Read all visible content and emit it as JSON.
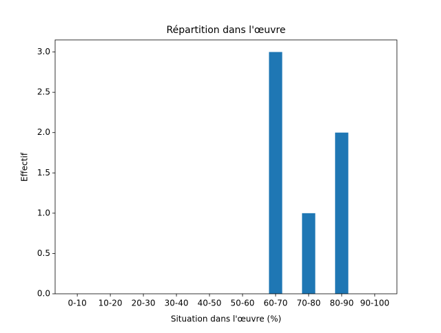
{
  "chart_data": {
    "type": "bar",
    "title": "Répartition dans l'œuvre",
    "x_label": "Situation dans l'œuvre (%)",
    "y_label": "Effectif",
    "categories": [
      "0-10",
      "10-20",
      "20-30",
      "30-40",
      "40-50",
      "50-60",
      "60-70",
      "70-80",
      "80-90",
      "90-100"
    ],
    "values": [
      0,
      0,
      0,
      0,
      0,
      0,
      3,
      1,
      2,
      0
    ],
    "color": "#1f77b4",
    "ylim": [
      0,
      3.15
    ],
    "yticks": [
      {
        "value": 0,
        "label": "0.0"
      },
      {
        "value": 0.5,
        "label": "0.5"
      },
      {
        "value": 1,
        "label": "1.0"
      },
      {
        "value": 1.5,
        "label": "1.5"
      },
      {
        "value": 2,
        "label": "2.0"
      },
      {
        "value": 2.5,
        "label": "2.5"
      },
      {
        "value": 3,
        "label": "3.0"
      }
    ],
    "grid": false
  }
}
